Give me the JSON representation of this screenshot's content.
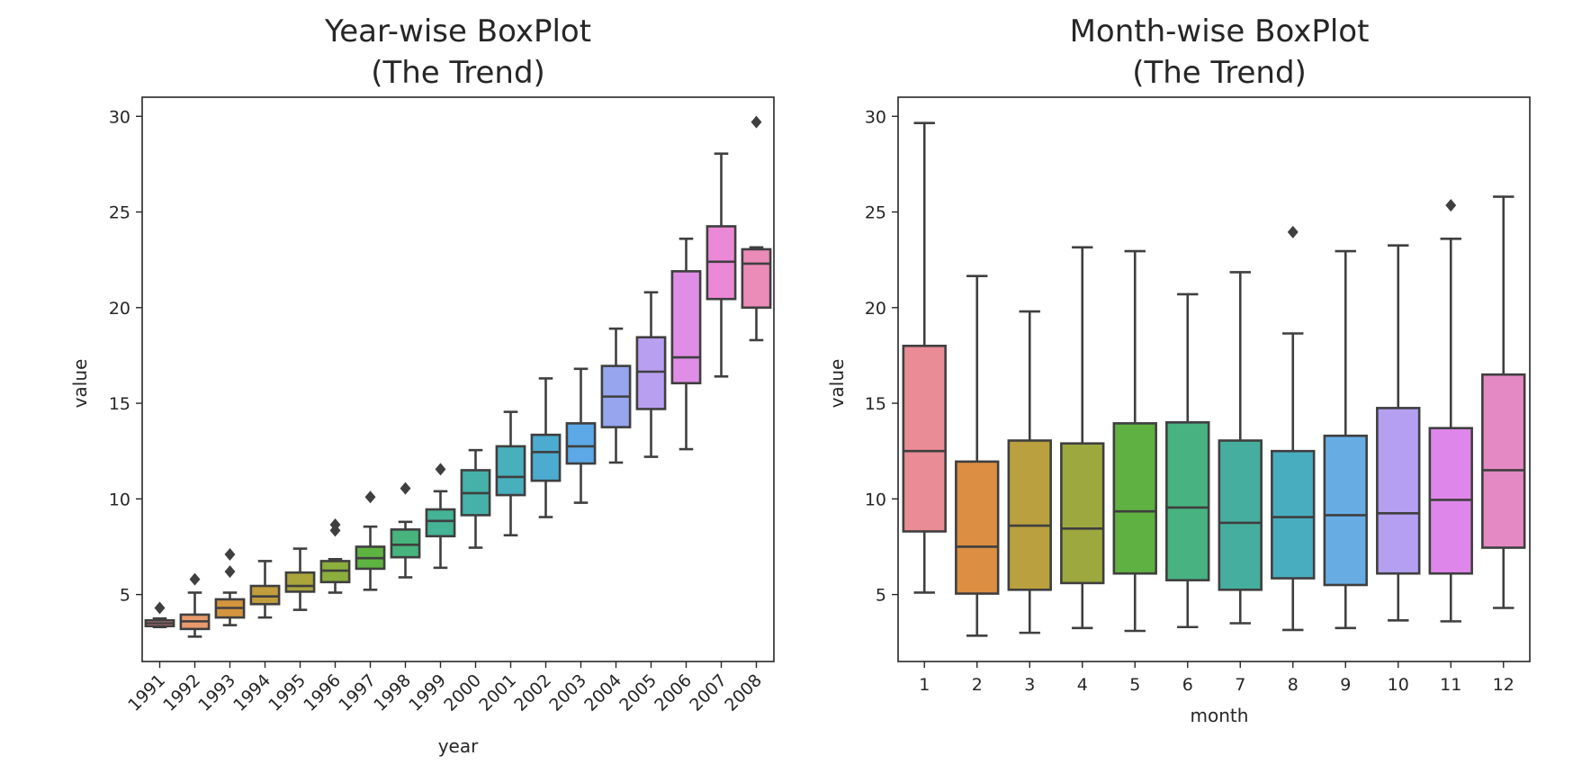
{
  "chart_data": [
    {
      "type": "box",
      "title": [
        "Year-wise BoxPlot",
        "(The Trend)"
      ],
      "xlabel": "year",
      "ylabel": "value",
      "ylim": [
        1.5,
        31
      ],
      "yticks": [
        5,
        10,
        15,
        20,
        25,
        30
      ],
      "categories": [
        "1991",
        "1992",
        "1993",
        "1994",
        "1995",
        "1996",
        "1997",
        "1998",
        "1999",
        "2000",
        "2001",
        "2002",
        "2003",
        "2004",
        "2005",
        "2006",
        "2007",
        "2008"
      ],
      "boxes": [
        {
          "whislo": 3.3,
          "q1": 3.35,
          "med": 3.5,
          "q3": 3.65,
          "whishi": 3.75,
          "fliers": [
            4.3
          ],
          "color": "#ea8c96"
        },
        {
          "whislo": 2.8,
          "q1": 3.2,
          "med": 3.6,
          "q3": 3.95,
          "whishi": 5.1,
          "fliers": [
            5.8
          ],
          "color": "#e99a6c"
        },
        {
          "whislo": 3.4,
          "q1": 3.8,
          "med": 4.3,
          "q3": 4.75,
          "whishi": 5.1,
          "fliers": [
            6.2,
            7.1
          ],
          "color": "#d4953f"
        },
        {
          "whislo": 3.8,
          "q1": 4.5,
          "med": 4.9,
          "q3": 5.45,
          "whishi": 6.75,
          "fliers": [],
          "color": "#c19d3d"
        },
        {
          "whislo": 4.2,
          "q1": 5.15,
          "med": 5.45,
          "q3": 6.15,
          "whishi": 7.4,
          "fliers": [],
          "color": "#aaa63c"
        },
        {
          "whislo": 5.1,
          "q1": 5.65,
          "med": 6.25,
          "q3": 6.75,
          "whishi": 6.85,
          "fliers": [
            8.35,
            8.65
          ],
          "color": "#8bae3d"
        },
        {
          "whislo": 5.25,
          "q1": 6.35,
          "med": 6.9,
          "q3": 7.5,
          "whishi": 8.55,
          "fliers": [
            10.1
          ],
          "color": "#5eb440"
        },
        {
          "whislo": 5.9,
          "q1": 6.95,
          "med": 7.6,
          "q3": 8.4,
          "whishi": 8.8,
          "fliers": [
            10.55
          ],
          "color": "#47b47d"
        },
        {
          "whislo": 6.4,
          "q1": 8.05,
          "med": 8.85,
          "q3": 9.45,
          "whishi": 10.4,
          "fliers": [
            11.55
          ],
          "color": "#45b395"
        },
        {
          "whislo": 7.45,
          "q1": 9.15,
          "med": 10.3,
          "q3": 11.5,
          "whishi": 12.55,
          "fliers": [],
          "color": "#46b1a9"
        },
        {
          "whislo": 8.1,
          "q1": 10.2,
          "med": 11.15,
          "q3": 12.75,
          "whishi": 14.55,
          "fliers": [],
          "color": "#48afbc"
        },
        {
          "whislo": 9.05,
          "q1": 10.95,
          "med": 12.45,
          "q3": 13.35,
          "whishi": 16.3,
          "fliers": [],
          "color": "#4bacd0"
        },
        {
          "whislo": 9.8,
          "q1": 11.85,
          "med": 12.75,
          "q3": 13.95,
          "whishi": 16.8,
          "fliers": [],
          "color": "#5da8e6"
        },
        {
          "whislo": 11.9,
          "q1": 13.75,
          "med": 15.35,
          "q3": 16.95,
          "whishi": 18.9,
          "fliers": [],
          "color": "#96a5ee"
        },
        {
          "whislo": 12.2,
          "q1": 14.7,
          "med": 16.65,
          "q3": 18.45,
          "whishi": 20.8,
          "fliers": [],
          "color": "#b99ff0"
        },
        {
          "whislo": 12.6,
          "q1": 16.05,
          "med": 17.4,
          "q3": 21.9,
          "whishi": 23.6,
          "fliers": [],
          "color": "#df8de6"
        },
        {
          "whislo": 16.4,
          "q1": 20.45,
          "med": 22.4,
          "q3": 24.25,
          "whishi": 28.05,
          "fliers": [],
          "color": "#ec89d7"
        },
        {
          "whislo": 18.3,
          "q1": 20.0,
          "med": 22.3,
          "q3": 23.05,
          "whishi": 23.15,
          "fliers": [
            29.7
          ],
          "color": "#eb8bb8"
        }
      ]
    },
    {
      "type": "box",
      "title": [
        "Month-wise BoxPlot",
        "(The Trend)"
      ],
      "xlabel": "month",
      "ylabel": "value",
      "ylim": [
        1.5,
        31
      ],
      "yticks": [
        5,
        10,
        15,
        20,
        25,
        30
      ],
      "categories": [
        "1",
        "2",
        "3",
        "4",
        "5",
        "6",
        "7",
        "8",
        "9",
        "10",
        "11",
        "12"
      ],
      "boxes": [
        {
          "whislo": 5.1,
          "q1": 8.3,
          "med": 12.5,
          "q3": 18.0,
          "whishi": 29.65,
          "fliers": [],
          "color": "#ea8c96"
        },
        {
          "whislo": 2.85,
          "q1": 5.05,
          "med": 7.5,
          "q3": 11.95,
          "whishi": 21.65,
          "fliers": [],
          "color": "#dc8e43"
        },
        {
          "whislo": 3.0,
          "q1": 5.25,
          "med": 8.6,
          "q3": 13.05,
          "whishi": 19.8,
          "fliers": [],
          "color": "#baa03e"
        },
        {
          "whislo": 3.25,
          "q1": 5.6,
          "med": 8.45,
          "q3": 12.9,
          "whishi": 23.15,
          "fliers": [],
          "color": "#9da83f"
        },
        {
          "whislo": 3.1,
          "q1": 6.1,
          "med": 9.35,
          "q3": 13.95,
          "whishi": 22.95,
          "fliers": [],
          "color": "#5fb141"
        },
        {
          "whislo": 3.3,
          "q1": 5.75,
          "med": 9.55,
          "q3": 14.0,
          "whishi": 20.7,
          "fliers": [],
          "color": "#48b380"
        },
        {
          "whislo": 3.5,
          "q1": 5.25,
          "med": 8.75,
          "q3": 13.05,
          "whishi": 21.85,
          "fliers": [],
          "color": "#46ae9f"
        },
        {
          "whislo": 3.15,
          "q1": 5.85,
          "med": 9.05,
          "q3": 12.5,
          "whishi": 18.65,
          "fliers": [
            23.95
          ],
          "color": "#48aebf"
        },
        {
          "whislo": 3.25,
          "q1": 5.5,
          "med": 9.15,
          "q3": 13.3,
          "whishi": 22.95,
          "fliers": [],
          "color": "#67ade4"
        },
        {
          "whislo": 3.65,
          "q1": 6.1,
          "med": 9.25,
          "q3": 14.75,
          "whishi": 23.25,
          "fliers": [],
          "color": "#b49ff0"
        },
        {
          "whislo": 3.6,
          "q1": 6.1,
          "med": 9.95,
          "q3": 13.7,
          "whishi": 23.6,
          "fliers": [
            25.35
          ],
          "color": "#df86ea"
        },
        {
          "whislo": 4.3,
          "q1": 7.45,
          "med": 11.5,
          "q3": 16.5,
          "whishi": 25.8,
          "fliers": [],
          "color": "#e489c4"
        }
      ]
    }
  ]
}
